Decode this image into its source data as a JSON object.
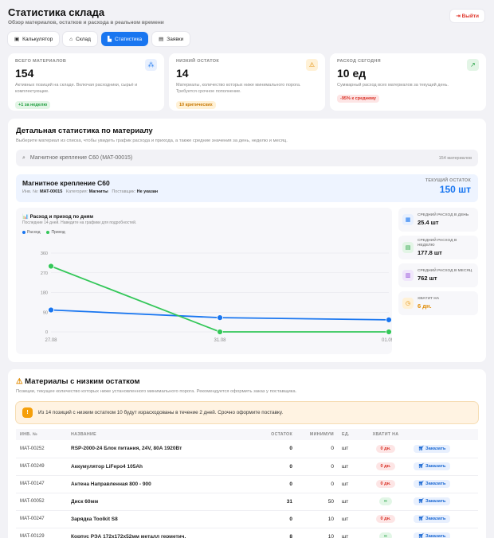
{
  "header": {
    "title": "Статистика склада",
    "subtitle": "Обзор материалов, остатков и расхода в реальном времени",
    "logout_label": "Выйти"
  },
  "tabs": [
    {
      "label": "Калькулятор",
      "icon": "calculator-icon",
      "active": false
    },
    {
      "label": "Склад",
      "icon": "warehouse-icon",
      "active": false
    },
    {
      "label": "Статистика",
      "icon": "chart-icon",
      "active": true
    },
    {
      "label": "Заявки",
      "icon": "clipboard-icon",
      "active": false
    }
  ],
  "stats": [
    {
      "label": "ВСЕГО МАТЕРИАЛОВ",
      "value": "154",
      "desc": "Активных позиций на складе. Включая расходники, сырьё и комплектующие.",
      "pill": "+1 за неделю",
      "pill_bg": "#e3f5e6",
      "pill_color": "#1e9e3e",
      "icon": "boxes-icon",
      "icon_bg": "#e8f0fe",
      "icon_color": "#1976f0"
    },
    {
      "label": "НИЗКИЙ ОСТАТОК",
      "value": "14",
      "desc": "Материалы, количество которых ниже минимального порога. Требуется срочное пополнение.",
      "pill": "10 критических",
      "pill_bg": "#fff1d6",
      "pill_color": "#c77700",
      "icon": "warning-icon",
      "icon_bg": "#fff1d6",
      "icon_color": "#e08a00"
    },
    {
      "label": "РАСХОД СЕГОДНЯ",
      "value": "10 ед",
      "desc": "Суммарный расход всех материалов за текущий день.",
      "pill": "-95% к среднему",
      "pill_bg": "#fde5e5",
      "pill_color": "#d93025",
      "icon": "trend-icon",
      "icon_bg": "#e3f5e6",
      "icon_color": "#1e9e3e"
    }
  ],
  "detail": {
    "title": "Детальная статистика по материалу",
    "subtitle": "Выберите материал из списка, чтобы увидеть график расхода и прихода, а также средние значения за день, неделю и месяц.",
    "search_value": "Магнитное крепление C60 (MAT-00015)",
    "search_count": "154 материалов",
    "material": {
      "name": "Магнитное крепление C60",
      "inv_label": "Инв. №:",
      "inv": "MAT-00015",
      "cat_label": "Категория:",
      "cat": "Магниты",
      "supplier_label": "Поставщик:",
      "supplier": "Не указан",
      "current_label": "ТЕКУЩИЙ ОСТАТОК",
      "current_value": "150 шт"
    },
    "chart_title": "📊 Расход и приход по дням",
    "chart_subtitle": "Последние 14 дней. Наведите на графики для подробностей.",
    "minis": [
      {
        "label": "СРЕДНИЙ РАСХОД В ДЕНЬ",
        "value": "25.4 шт",
        "icon": "calendar-day-icon",
        "bg": "#e8f0fe",
        "color": "#1976f0",
        "glyph": "▦"
      },
      {
        "label": "СРЕДНИЙ РАСХОД В НЕДЕЛЮ",
        "value": "177.8 шт",
        "icon": "calendar-week-icon",
        "bg": "#e3f5e6",
        "color": "#1e9e3e",
        "glyph": "▤"
      },
      {
        "label": "СРЕДНИЙ РАСХОД В МЕСЯЦ",
        "value": "762 шт",
        "icon": "calendar-month-icon",
        "bg": "#f0e6fb",
        "color": "#8e44d8",
        "glyph": "▥"
      },
      {
        "label": "ХВАТИТ НА",
        "value": "6 дн.",
        "icon": "clock-icon",
        "bg": "#fff1d6",
        "color": "#e08a00",
        "glyph": "◷",
        "value_color": "#e08a00"
      }
    ]
  },
  "chart_data": {
    "type": "line",
    "x": [
      "27.08",
      "31.08",
      "01.09"
    ],
    "series": [
      {
        "name": "Расход",
        "color": "#1976f0",
        "values": [
          100,
          65,
          55
        ]
      },
      {
        "name": "Приход",
        "color": "#34c759",
        "values": [
          300,
          0,
          0
        ]
      }
    ],
    "yticks": [
      0,
      90,
      180,
      270,
      360
    ],
    "ylim": [
      0,
      360
    ]
  },
  "low": {
    "title": "Материалы с низким остатком",
    "subtitle": "Позиции, текущее количество которых ниже установленного минимального порога. Рекомендуется оформить заказ у поставщика.",
    "alert": "Из 14 позиций с низким остатком 10 будут израсходованы в течение 2 дней. Срочно оформите поставку.",
    "columns": [
      "ИНВ. №",
      "НАЗВАНИЕ",
      "ОСТАТОК",
      "МИНИМУМ",
      "ЕД.",
      "ХВАТИТ НА",
      ""
    ],
    "order_label": "Заказать",
    "rows": [
      {
        "inv": "MAT-00252",
        "name": "RSP-2000-24 Блок питания, 24V, 80A 1920Вт",
        "stock": "0",
        "min": "0",
        "unit": "шт",
        "days": "0 дн.",
        "days_kind": "red"
      },
      {
        "inv": "MAT-00249",
        "name": "Аккумулятор LiFepo4 105Ah",
        "stock": "0",
        "min": "0",
        "unit": "шт",
        "days": "0 дн.",
        "days_kind": "red"
      },
      {
        "inv": "MAT-00147",
        "name": "Антена Направленная 800 - 900",
        "stock": "0",
        "min": "0",
        "unit": "шт",
        "days": "0 дн.",
        "days_kind": "red"
      },
      {
        "inv": "MAT-00052",
        "name": "Диск 60мм",
        "stock": "31",
        "min": "50",
        "unit": "шт",
        "days": "∞",
        "days_kind": "green"
      },
      {
        "inv": "MAT-00247",
        "name": "Зарядка Toolkit S8",
        "stock": "0",
        "min": "10",
        "unit": "шт",
        "days": "0 дн.",
        "days_kind": "red"
      },
      {
        "inv": "MAT-00129",
        "name": "Корпус РЭА 172x172x52мм металл герметич.",
        "stock": "8",
        "min": "10",
        "unit": "шт",
        "days": "∞",
        "days_kind": "green"
      }
    ]
  }
}
